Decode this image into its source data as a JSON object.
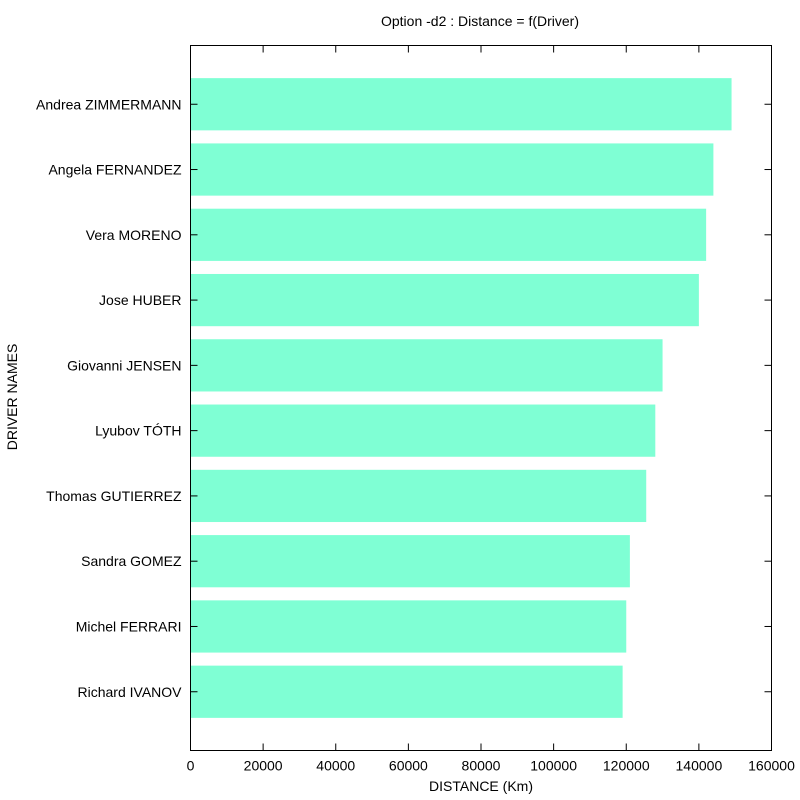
{
  "chart_data": {
    "type": "bar",
    "orientation": "horizontal",
    "title": "Option -d2 : Distance = f(Driver)",
    "xlabel": "DISTANCE (Km)",
    "ylabel": "DRIVER NAMES",
    "xlim": [
      0,
      160000
    ],
    "x_ticks": [
      "0",
      "20000",
      "40000",
      "60000",
      "80000",
      "100000",
      "120000",
      "140000",
      "160000"
    ],
    "grid": false,
    "bar_color": "#7fffd4",
    "categories": [
      "Andrea ZIMMERMANN",
      "Angela FERNANDEZ",
      "Vera MORENO",
      "Jose HUBER",
      "Giovanni JENSEN",
      "Lyubov TÓTH",
      "Thomas GUTIERREZ",
      "Sandra GOMEZ",
      "Michel FERRARI",
      "Richard IVANOV"
    ],
    "values": [
      149000,
      144000,
      142000,
      140000,
      130000,
      128000,
      125500,
      121000,
      120000,
      119000
    ]
  }
}
